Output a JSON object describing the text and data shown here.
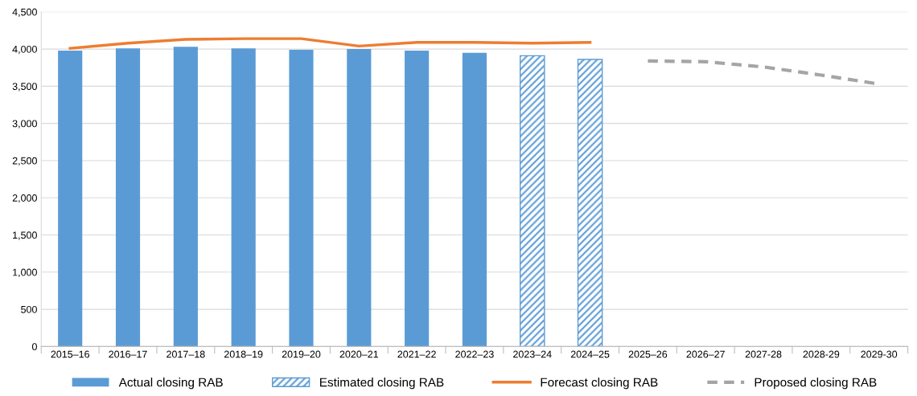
{
  "chart_data": {
    "type": "bar",
    "categories": [
      "2015–16",
      "2016–17",
      "2017–18",
      "2018–19",
      "2019–20",
      "2020–21",
      "2021–22",
      "2022–23",
      "2023–24",
      "2024–25",
      "2025–26",
      "2026–27",
      "2027-28",
      "2028-29",
      "2029-30"
    ],
    "series": [
      {
        "name": "Actual closing RAB",
        "color": "#5b9bd5",
        "values": [
          3980,
          4010,
          4030,
          4010,
          3990,
          4000,
          3980,
          3950,
          null,
          null,
          null,
          null,
          null,
          null,
          null
        ]
      },
      {
        "name": "Estimated closing RAB",
        "type": "bar",
        "color": "#5b9bd5",
        "values": [
          null,
          null,
          null,
          null,
          null,
          null,
          null,
          null,
          3910,
          3860,
          null,
          null,
          null,
          null,
          null
        ]
      },
      {
        "name": "Forecast closing RAB",
        "type": "line",
        "color": "#ed7d31",
        "line_style": "solid",
        "values": [
          4010,
          4080,
          4130,
          4140,
          4140,
          4040,
          4090,
          4090,
          4080,
          4090,
          null,
          null,
          null,
          null,
          null
        ]
      },
      {
        "name": "Proposed closing RAB",
        "type": "line",
        "color": "#a5a5a5",
        "line_style": "dashed",
        "values": [
          null,
          null,
          null,
          null,
          null,
          null,
          null,
          null,
          null,
          null,
          3840,
          3830,
          3760,
          3650,
          3530
        ]
      }
    ],
    "ylim": [
      0,
      4500
    ],
    "yticks": [
      0,
      {
        "value": 500,
        "label": "500"
      },
      {
        "value": 1000,
        "label": "1,000"
      },
      {
        "value": 1500,
        "label": "1,500"
      },
      {
        "value": 2000,
        "label": "2,000"
      },
      {
        "value": 2500,
        "label": "2,500"
      },
      {
        "value": 3000,
        "label": "3,000"
      },
      {
        "value": 3500,
        "label": "3,500"
      },
      {
        "value": 4000,
        "label": "4,000"
      },
      {
        "value": 4500,
        "label": "4,500"
      }
    ],
    "grid": "y",
    "legend": "bottom",
    "marker": "none"
  }
}
